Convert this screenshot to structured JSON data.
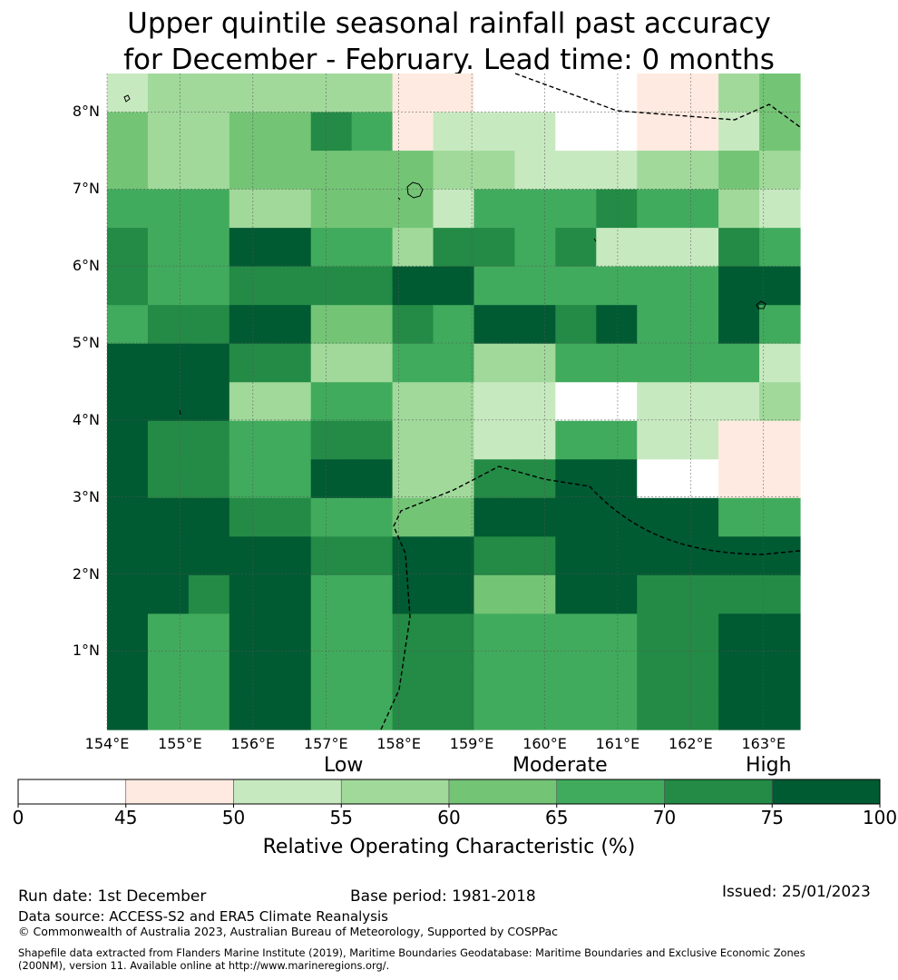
{
  "title": {
    "line1": "Upper quintile seasonal rainfall past accuracy",
    "line2": "for December - February. Lead time: 0 months"
  },
  "map": {
    "lat_labels": [
      "8°N",
      "7°N",
      "6°N",
      "5°N",
      "4°N",
      "3°N",
      "2°N",
      "1°N"
    ],
    "lon_labels": [
      "154°E",
      "155°E",
      "156°E",
      "157°E",
      "158°E",
      "159°E",
      "160°E",
      "161°E",
      "162°E",
      "163°E"
    ],
    "lon_range": [
      154,
      163.5
    ],
    "lat_range": [
      -0.02,
      8.5
    ],
    "grid_rows": [
      [
        2,
        3,
        3,
        3,
        3,
        3,
        3,
        1,
        1,
        0,
        0,
        0,
        0,
        1,
        1,
        3,
        4
      ],
      [
        4,
        3,
        3,
        4,
        4,
        6,
        5,
        1,
        2,
        2,
        2,
        0,
        0,
        1,
        1,
        2,
        4
      ],
      [
        4,
        3,
        3,
        4,
        4,
        4,
        4,
        4,
        3,
        3,
        2,
        2,
        2,
        3,
        3,
        4,
        3
      ],
      [
        5,
        5,
        5,
        3,
        3,
        4,
        4,
        4,
        2,
        5,
        5,
        5,
        6,
        5,
        5,
        3,
        2
      ],
      [
        6,
        5,
        5,
        7,
        7,
        5,
        5,
        3,
        6,
        6,
        5,
        6,
        2,
        2,
        2,
        6,
        5
      ],
      [
        6,
        5,
        5,
        6,
        6,
        6,
        6,
        7,
        7,
        5,
        5,
        5,
        5,
        5,
        5,
        7,
        7
      ],
      [
        5,
        6,
        6,
        7,
        7,
        4,
        4,
        6,
        5,
        7,
        7,
        6,
        7,
        5,
        5,
        7,
        5
      ],
      [
        7,
        7,
        7,
        6,
        6,
        3,
        3,
        5,
        5,
        3,
        3,
        5,
        5,
        5,
        5,
        5,
        2
      ],
      [
        7,
        7,
        7,
        3,
        3,
        5,
        5,
        3,
        3,
        2,
        2,
        0,
        0,
        2,
        2,
        2,
        3
      ],
      [
        7,
        6,
        6,
        5,
        5,
        6,
        6,
        3,
        3,
        2,
        2,
        5,
        5,
        2,
        2,
        1,
        1
      ],
      [
        7,
        6,
        6,
        5,
        5,
        7,
        7,
        3,
        3,
        6,
        6,
        7,
        7,
        0,
        0,
        1,
        1
      ],
      [
        7,
        7,
        7,
        6,
        6,
        5,
        5,
        4,
        4,
        7,
        7,
        7,
        7,
        7,
        7,
        5,
        5
      ],
      [
        7,
        7,
        7,
        7,
        7,
        6,
        6,
        7,
        7,
        6,
        6,
        7,
        7,
        7,
        7,
        7,
        7
      ],
      [
        7,
        7,
        6,
        7,
        7,
        5,
        5,
        7,
        7,
        4,
        4,
        7,
        7,
        6,
        6,
        6,
        6
      ],
      [
        7,
        5,
        5,
        7,
        7,
        5,
        5,
        6,
        6,
        5,
        5,
        5,
        5,
        6,
        6,
        7,
        7
      ],
      [
        7,
        5,
        5,
        7,
        7,
        5,
        5,
        6,
        6,
        5,
        5,
        5,
        5,
        6,
        6,
        7,
        7
      ],
      [
        7,
        5,
        5,
        7,
        7,
        5,
        5,
        6,
        6,
        5,
        5,
        5,
        5,
        6,
        6,
        7,
        7
      ]
    ]
  },
  "colorbar": {
    "category_labels": [
      "Low",
      "Moderate",
      "High"
    ],
    "ticks": [
      "0",
      "45",
      "50",
      "55",
      "60",
      "65",
      "70",
      "75",
      "100"
    ],
    "bin_colors": [
      "#ffffff",
      "#feeae0",
      "#c7e9c0",
      "#a1d99b",
      "#74c476",
      "#41ab5d",
      "#238b45",
      "#005a32"
    ],
    "title": "Relative Operating Characteristic (%)"
  },
  "footer": {
    "run_date": "Run date: 1st December",
    "base_period": "Base period: 1981-2018",
    "issued": "Issued: 25/01/2023",
    "data_source": "Data source: ACCESS-S2 and ERA5 Climate Reanalysis",
    "copyright": "© Commonwealth of Australia 2023, Australian Bureau of Meteorology, Supported by COSPPac",
    "shapefile_line1": "Shapefile data extracted from Flanders Marine Institute (2019), Maritime Boundaries Geodatabase: Maritime Boundaries and Exclusive Economic Zones",
    "shapefile_line2": "(200NM), version 11. Available online at http://www.marineregions.org/."
  }
}
